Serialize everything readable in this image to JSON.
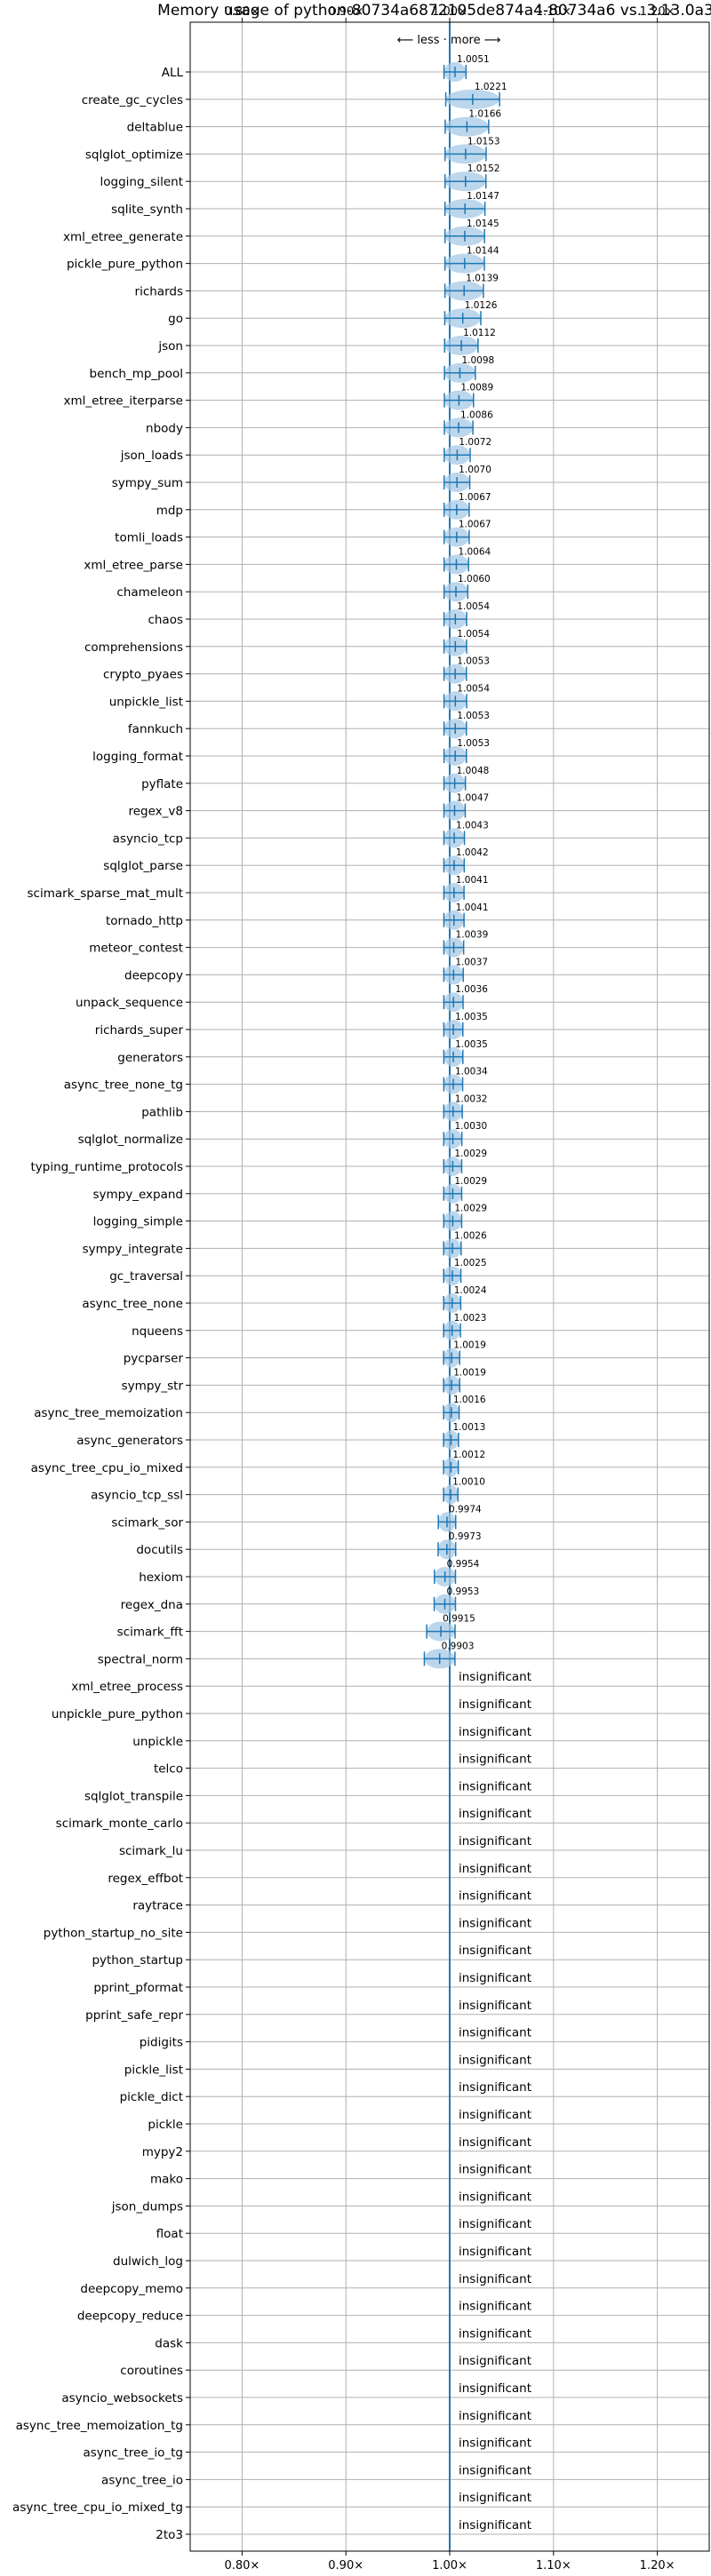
{
  "chart_data": {
    "type": "violin",
    "title": "Memory usage of python-80734a6872105de874a4-80734a6 vs. 3.13.0a3",
    "xlabel": "",
    "ylabel": "",
    "direction_label": "⟵ less · more ⟶",
    "xlim": [
      0.75,
      1.25
    ],
    "x_ticks": [
      0.8,
      0.9,
      1.0,
      1.1,
      1.2
    ],
    "x_tick_labels": [
      "0.80×",
      "0.90×",
      "1.00×",
      "1.10×",
      "1.20×"
    ],
    "grid": true,
    "reference_line": 1.0,
    "colors": {
      "accent": "#1f77b4",
      "violin": "#a6c8e6",
      "grid": "#b0b0b0"
    },
    "insignificant_label": "insignificant",
    "benchmarks": [
      {
        "name": "ALL",
        "value": 1.0051,
        "label": "1.0051"
      },
      {
        "name": "create_gc_cycles",
        "value": 1.0221,
        "label": "1.0221"
      },
      {
        "name": "deltablue",
        "value": 1.0166,
        "label": "1.0166"
      },
      {
        "name": "sqlglot_optimize",
        "value": 1.0153,
        "label": "1.0153"
      },
      {
        "name": "logging_silent",
        "value": 1.0152,
        "label": "1.0152"
      },
      {
        "name": "sqlite_synth",
        "value": 1.0147,
        "label": "1.0147"
      },
      {
        "name": "xml_etree_generate",
        "value": 1.0145,
        "label": "1.0145"
      },
      {
        "name": "pickle_pure_python",
        "value": 1.0144,
        "label": "1.0144"
      },
      {
        "name": "richards",
        "value": 1.0139,
        "label": "1.0139"
      },
      {
        "name": "go",
        "value": 1.0126,
        "label": "1.0126"
      },
      {
        "name": "json",
        "value": 1.0112,
        "label": "1.0112"
      },
      {
        "name": "bench_mp_pool",
        "value": 1.0098,
        "label": "1.0098"
      },
      {
        "name": "xml_etree_iterparse",
        "value": 1.0089,
        "label": "1.0089"
      },
      {
        "name": "nbody",
        "value": 1.0086,
        "label": "1.0086"
      },
      {
        "name": "json_loads",
        "value": 1.0072,
        "label": "1.0072"
      },
      {
        "name": "sympy_sum",
        "value": 1.007,
        "label": "1.0070"
      },
      {
        "name": "mdp",
        "value": 1.0067,
        "label": "1.0067"
      },
      {
        "name": "tomli_loads",
        "value": 1.0067,
        "label": "1.0067"
      },
      {
        "name": "xml_etree_parse",
        "value": 1.0064,
        "label": "1.0064"
      },
      {
        "name": "chameleon",
        "value": 1.006,
        "label": "1.0060"
      },
      {
        "name": "chaos",
        "value": 1.0054,
        "label": "1.0054"
      },
      {
        "name": "comprehensions",
        "value": 1.0054,
        "label": "1.0054"
      },
      {
        "name": "crypto_pyaes",
        "value": 1.0053,
        "label": "1.0053"
      },
      {
        "name": "unpickle_list",
        "value": 1.0054,
        "label": "1.0054"
      },
      {
        "name": "fannkuch",
        "value": 1.0053,
        "label": "1.0053"
      },
      {
        "name": "logging_format",
        "value": 1.0053,
        "label": "1.0053"
      },
      {
        "name": "pyflate",
        "value": 1.0048,
        "label": "1.0048"
      },
      {
        "name": "regex_v8",
        "value": 1.0047,
        "label": "1.0047"
      },
      {
        "name": "asyncio_tcp",
        "value": 1.0043,
        "label": "1.0043"
      },
      {
        "name": "sqlglot_parse",
        "value": 1.0042,
        "label": "1.0042"
      },
      {
        "name": "scimark_sparse_mat_mult",
        "value": 1.0041,
        "label": "1.0041"
      },
      {
        "name": "tornado_http",
        "value": 1.0041,
        "label": "1.0041"
      },
      {
        "name": "meteor_contest",
        "value": 1.0039,
        "label": "1.0039"
      },
      {
        "name": "deepcopy",
        "value": 1.0037,
        "label": "1.0037"
      },
      {
        "name": "unpack_sequence",
        "value": 1.0036,
        "label": "1.0036"
      },
      {
        "name": "richards_super",
        "value": 1.0035,
        "label": "1.0035"
      },
      {
        "name": "generators",
        "value": 1.0035,
        "label": "1.0035"
      },
      {
        "name": "async_tree_none_tg",
        "value": 1.0034,
        "label": "1.0034"
      },
      {
        "name": "pathlib",
        "value": 1.0032,
        "label": "1.0032"
      },
      {
        "name": "sqlglot_normalize",
        "value": 1.003,
        "label": "1.0030"
      },
      {
        "name": "typing_runtime_protocols",
        "value": 1.0029,
        "label": "1.0029"
      },
      {
        "name": "sympy_expand",
        "value": 1.0029,
        "label": "1.0029"
      },
      {
        "name": "logging_simple",
        "value": 1.0029,
        "label": "1.0029"
      },
      {
        "name": "sympy_integrate",
        "value": 1.0026,
        "label": "1.0026"
      },
      {
        "name": "gc_traversal",
        "value": 1.0025,
        "label": "1.0025"
      },
      {
        "name": "async_tree_none",
        "value": 1.0024,
        "label": "1.0024"
      },
      {
        "name": "nqueens",
        "value": 1.0023,
        "label": "1.0023"
      },
      {
        "name": "pycparser",
        "value": 1.0019,
        "label": "1.0019"
      },
      {
        "name": "sympy_str",
        "value": 1.0019,
        "label": "1.0019"
      },
      {
        "name": "async_tree_memoization",
        "value": 1.0016,
        "label": "1.0016"
      },
      {
        "name": "async_generators",
        "value": 1.0013,
        "label": "1.0013"
      },
      {
        "name": "async_tree_cpu_io_mixed",
        "value": 1.0012,
        "label": "1.0012"
      },
      {
        "name": "asyncio_tcp_ssl",
        "value": 1.001,
        "label": "1.0010"
      },
      {
        "name": "scimark_sor",
        "value": 0.9974,
        "label": "0.9974"
      },
      {
        "name": "docutils",
        "value": 0.9973,
        "label": "0.9973"
      },
      {
        "name": "hexiom",
        "value": 0.9954,
        "label": "0.9954"
      },
      {
        "name": "regex_dna",
        "value": 0.9953,
        "label": "0.9953"
      },
      {
        "name": "scimark_fft",
        "value": 0.9915,
        "label": "0.9915"
      },
      {
        "name": "spectral_norm",
        "value": 0.9903,
        "label": "0.9903"
      },
      {
        "name": "xml_etree_process",
        "value": null,
        "label": "insignificant"
      },
      {
        "name": "unpickle_pure_python",
        "value": null,
        "label": "insignificant"
      },
      {
        "name": "unpickle",
        "value": null,
        "label": "insignificant"
      },
      {
        "name": "telco",
        "value": null,
        "label": "insignificant"
      },
      {
        "name": "sqlglot_transpile",
        "value": null,
        "label": "insignificant"
      },
      {
        "name": "scimark_monte_carlo",
        "value": null,
        "label": "insignificant"
      },
      {
        "name": "scimark_lu",
        "value": null,
        "label": "insignificant"
      },
      {
        "name": "regex_effbot",
        "value": null,
        "label": "insignificant"
      },
      {
        "name": "raytrace",
        "value": null,
        "label": "insignificant"
      },
      {
        "name": "python_startup_no_site",
        "value": null,
        "label": "insignificant"
      },
      {
        "name": "python_startup",
        "value": null,
        "label": "insignificant"
      },
      {
        "name": "pprint_pformat",
        "value": null,
        "label": "insignificant"
      },
      {
        "name": "pprint_safe_repr",
        "value": null,
        "label": "insignificant"
      },
      {
        "name": "pidigits",
        "value": null,
        "label": "insignificant"
      },
      {
        "name": "pickle_list",
        "value": null,
        "label": "insignificant"
      },
      {
        "name": "pickle_dict",
        "value": null,
        "label": "insignificant"
      },
      {
        "name": "pickle",
        "value": null,
        "label": "insignificant"
      },
      {
        "name": "mypy2",
        "value": null,
        "label": "insignificant"
      },
      {
        "name": "mako",
        "value": null,
        "label": "insignificant"
      },
      {
        "name": "json_dumps",
        "value": null,
        "label": "insignificant"
      },
      {
        "name": "float",
        "value": null,
        "label": "insignificant"
      },
      {
        "name": "dulwich_log",
        "value": null,
        "label": "insignificant"
      },
      {
        "name": "deepcopy_memo",
        "value": null,
        "label": "insignificant"
      },
      {
        "name": "deepcopy_reduce",
        "value": null,
        "label": "insignificant"
      },
      {
        "name": "dask",
        "value": null,
        "label": "insignificant"
      },
      {
        "name": "coroutines",
        "value": null,
        "label": "insignificant"
      },
      {
        "name": "asyncio_websockets",
        "value": null,
        "label": "insignificant"
      },
      {
        "name": "async_tree_memoization_tg",
        "value": null,
        "label": "insignificant"
      },
      {
        "name": "async_tree_io_tg",
        "value": null,
        "label": "insignificant"
      },
      {
        "name": "async_tree_io",
        "value": null,
        "label": "insignificant"
      },
      {
        "name": "async_tree_cpu_io_mixed_tg",
        "value": null,
        "label": "insignificant"
      },
      {
        "name": "2to3",
        "value": null,
        "label": "insignificant"
      }
    ]
  }
}
